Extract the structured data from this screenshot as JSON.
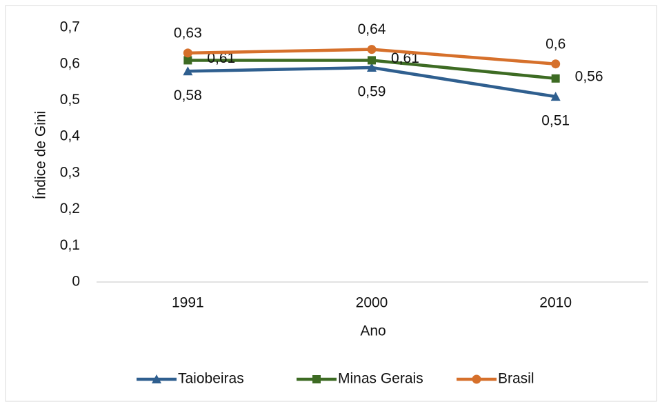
{
  "chart_data": {
    "type": "line",
    "xlabel": "Ano",
    "ylabel": "Índice de Gini",
    "categories": [
      "1991",
      "2000",
      "2010"
    ],
    "series": [
      {
        "name": "Taiobeiras",
        "color": "#2f5f8f",
        "marker": "triangle",
        "values": [
          0.58,
          0.59,
          0.51
        ],
        "value_labels": [
          "0,58",
          "0,59",
          "0,51"
        ]
      },
      {
        "name": "Minas Gerais",
        "color": "#3d6b23",
        "marker": "square",
        "values": [
          0.61,
          0.61,
          0.56
        ],
        "value_labels": [
          "0,61",
          "0,61",
          "0,56"
        ]
      },
      {
        "name": "Brasil",
        "color": "#d6702b",
        "marker": "circle",
        "values": [
          0.63,
          0.64,
          0.6
        ],
        "value_labels": [
          "0,63",
          "0,64",
          "0,6"
        ]
      }
    ],
    "ylim": [
      0,
      0.7
    ],
    "yticks": [
      {
        "value": 0,
        "label": "0"
      },
      {
        "value": 0.1,
        "label": "0,1"
      },
      {
        "value": 0.2,
        "label": "0,2"
      },
      {
        "value": 0.3,
        "label": "0,3"
      },
      {
        "value": 0.4,
        "label": "0,4"
      },
      {
        "value": 0.5,
        "label": "0,5"
      },
      {
        "value": 0.6,
        "label": "0,6"
      },
      {
        "value": 0.7,
        "label": "0,7"
      }
    ],
    "grid": false,
    "legend": "bottom"
  }
}
